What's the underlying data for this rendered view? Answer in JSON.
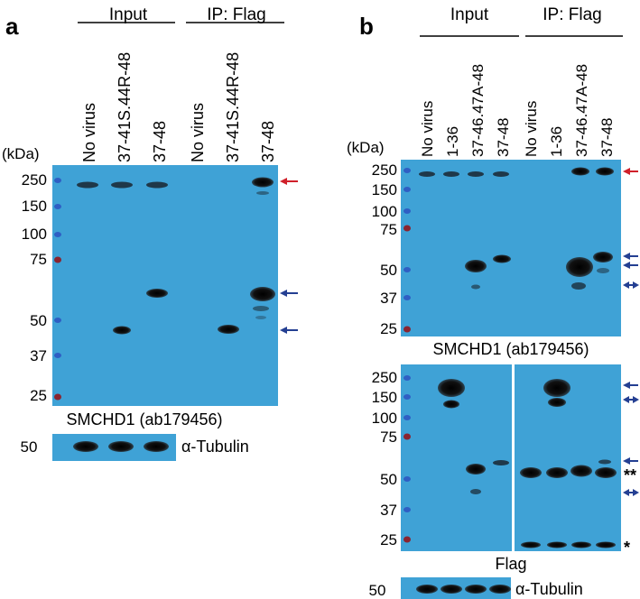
{
  "colors": {
    "membrane": "#3fa2d6",
    "band": "#0b0b0b",
    "ladder_blue": "#2f5fc4",
    "ladder_red": "#8a2430",
    "arrow_red": "#d0202a",
    "arrow_blue": "#243f92"
  },
  "panel_a": {
    "letter": "a",
    "group_input": "Input",
    "group_ip": "IP: Flag",
    "lanes": [
      "No virus",
      "37-41S.44R-48",
      "37-48",
      "No virus",
      "37-41S.44R-48",
      "37-48"
    ],
    "kda_label": "(kDa)",
    "markers": [
      "250",
      "150",
      "100",
      "75",
      "50",
      "37",
      "25"
    ],
    "blot_caption": "SMCHD1 (ab179456)",
    "tubulin_marker": "50",
    "tubulin_label": "α-Tubulin",
    "arrows": [
      "red-left-arrow",
      "blue-left-arrow",
      "blue-left-arrow"
    ]
  },
  "panel_b": {
    "letter": "b",
    "group_input": "Input",
    "group_ip": "IP: Flag",
    "lanes": [
      "No virus",
      "1-36",
      "37-46.47A-48",
      "37-48",
      "No virus",
      "1-36",
      "37-46.47A-48",
      "37-48"
    ],
    "kda_label": "(kDa)",
    "markers_top": [
      "250",
      "150",
      "100",
      "75",
      "50",
      "37",
      "25"
    ],
    "top_caption": "SMCHD1 (ab179456)",
    "markers_bottom": [
      "250",
      "150",
      "100",
      "75",
      "50",
      "37",
      "25"
    ],
    "bottom_caption": "Flag",
    "asterisk_double": "**",
    "asterisk_single": "*",
    "tubulin_marker": "50",
    "tubulin_label": "α-Tubulin"
  }
}
